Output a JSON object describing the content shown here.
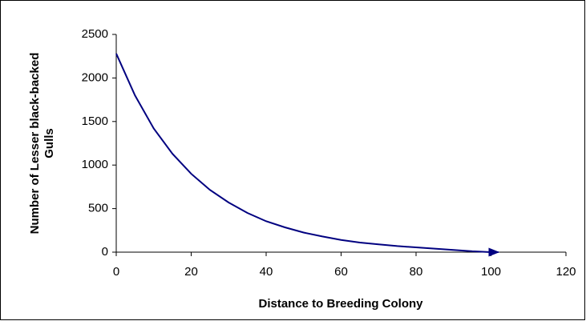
{
  "chart_data": {
    "type": "line",
    "x_label": "Distance to Breeding Colony",
    "y_label_lines": [
      "Number of Lesser black-backed",
      "Gulls"
    ],
    "x": [
      0,
      5,
      10,
      15,
      20,
      25,
      30,
      35,
      40,
      45,
      50,
      55,
      60,
      65,
      70,
      75,
      80,
      85,
      90,
      95,
      100,
      102
    ],
    "series": [
      {
        "color": "#000080",
        "values": [
          2280,
          1800,
          1420,
          1130,
          900,
          715,
          570,
          450,
          355,
          285,
          225,
          180,
          140,
          110,
          90,
          70,
          55,
          40,
          25,
          10,
          0,
          0
        ]
      }
    ],
    "xlim": [
      0,
      120
    ],
    "xticks": [
      0,
      20,
      40,
      60,
      80,
      100,
      120
    ],
    "ylim": [
      0,
      2500
    ],
    "yticks": [
      0,
      500,
      1000,
      1500,
      2000,
      2500
    ],
    "end_arrow": true
  }
}
